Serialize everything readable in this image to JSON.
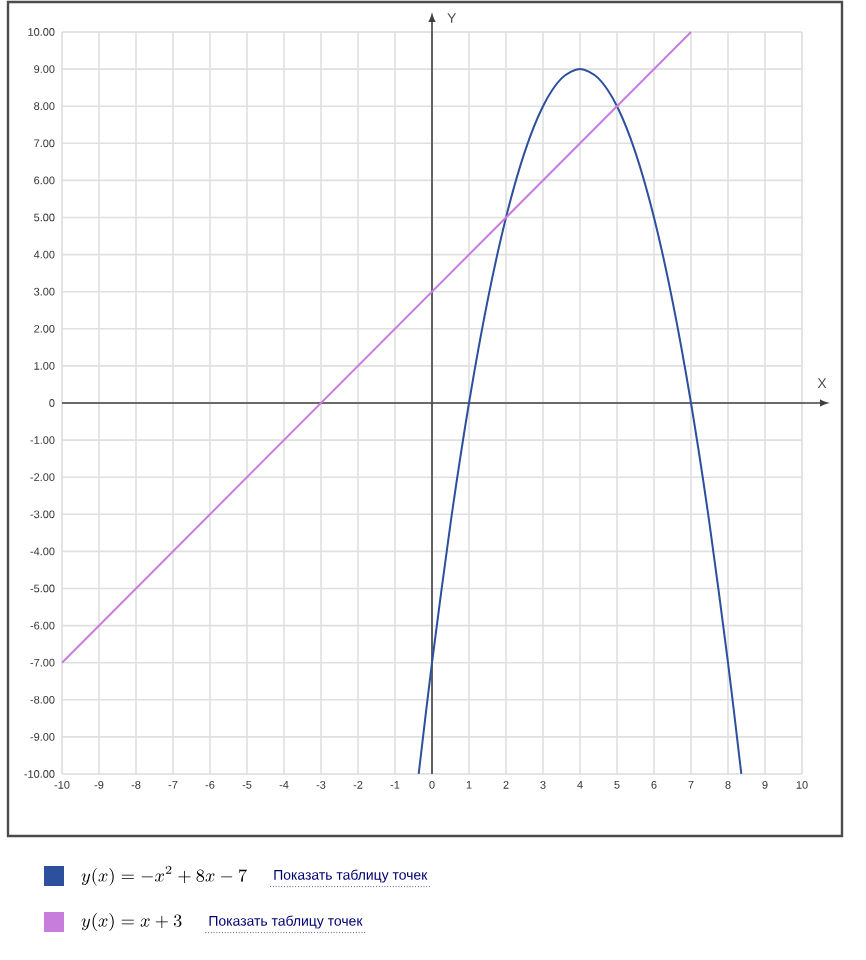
{
  "chart_data": {
    "type": "line",
    "xlabel": "X",
    "ylabel": "Y",
    "xlim": [
      -10,
      10
    ],
    "ylim": [
      -10,
      10
    ],
    "xticks": [
      -10,
      -9,
      -8,
      -7,
      -6,
      -5,
      -4,
      -3,
      -2,
      -1,
      0,
      1,
      2,
      3,
      4,
      5,
      6,
      7,
      8,
      9,
      10
    ],
    "yticks": [
      {
        "value": -10,
        "label": "-10.00"
      },
      {
        "value": -9,
        "label": "-9.00"
      },
      {
        "value": -8,
        "label": "-8.00"
      },
      {
        "value": -7,
        "label": "-7.00"
      },
      {
        "value": -6,
        "label": "-6.00"
      },
      {
        "value": -5,
        "label": "-5.00"
      },
      {
        "value": -4,
        "label": "-4.00"
      },
      {
        "value": -3,
        "label": "-3.00"
      },
      {
        "value": -2,
        "label": "-2.00"
      },
      {
        "value": -1,
        "label": "-1.00"
      },
      0,
      {
        "value": 1,
        "label": "1.00"
      },
      {
        "value": 2,
        "label": "2.00"
      },
      {
        "value": 3,
        "label": "3.00"
      },
      {
        "value": 4,
        "label": "4.00"
      },
      {
        "value": 5,
        "label": "5.00"
      },
      {
        "value": 6,
        "label": "6.00"
      },
      {
        "value": 7,
        "label": "7.00"
      },
      {
        "value": 8,
        "label": "8.00"
      },
      {
        "value": 9,
        "label": "9.00"
      },
      {
        "value": 10,
        "label": "10.00"
      }
    ],
    "grid": true,
    "legend": "bottom",
    "marker": "none",
    "line_style": "solid",
    "series": [
      {
        "name": "y(x) = -x^2 + 8x - 7",
        "color": "#2c4f9e",
        "x": [
          -0.36,
          0,
          0.5,
          1,
          1.5,
          2,
          2.5,
          3,
          3.5,
          4,
          4.5,
          5,
          5.5,
          6,
          6.5,
          7,
          7.5,
          8,
          8.36
        ],
        "values": [
          -10,
          -7,
          -3.25,
          0,
          2.75,
          5,
          6.75,
          8,
          8.75,
          9,
          8.75,
          8,
          6.75,
          5,
          2.75,
          0,
          -3.25,
          -7,
          -10
        ]
      },
      {
        "name": "y(x) = x + 3",
        "color": "#c77ddb",
        "x": [
          -10,
          7
        ],
        "values": [
          -7,
          10
        ]
      }
    ],
    "annotations": [
      "Показать таблицу точек",
      "Показать таблицу точек"
    ]
  }
}
